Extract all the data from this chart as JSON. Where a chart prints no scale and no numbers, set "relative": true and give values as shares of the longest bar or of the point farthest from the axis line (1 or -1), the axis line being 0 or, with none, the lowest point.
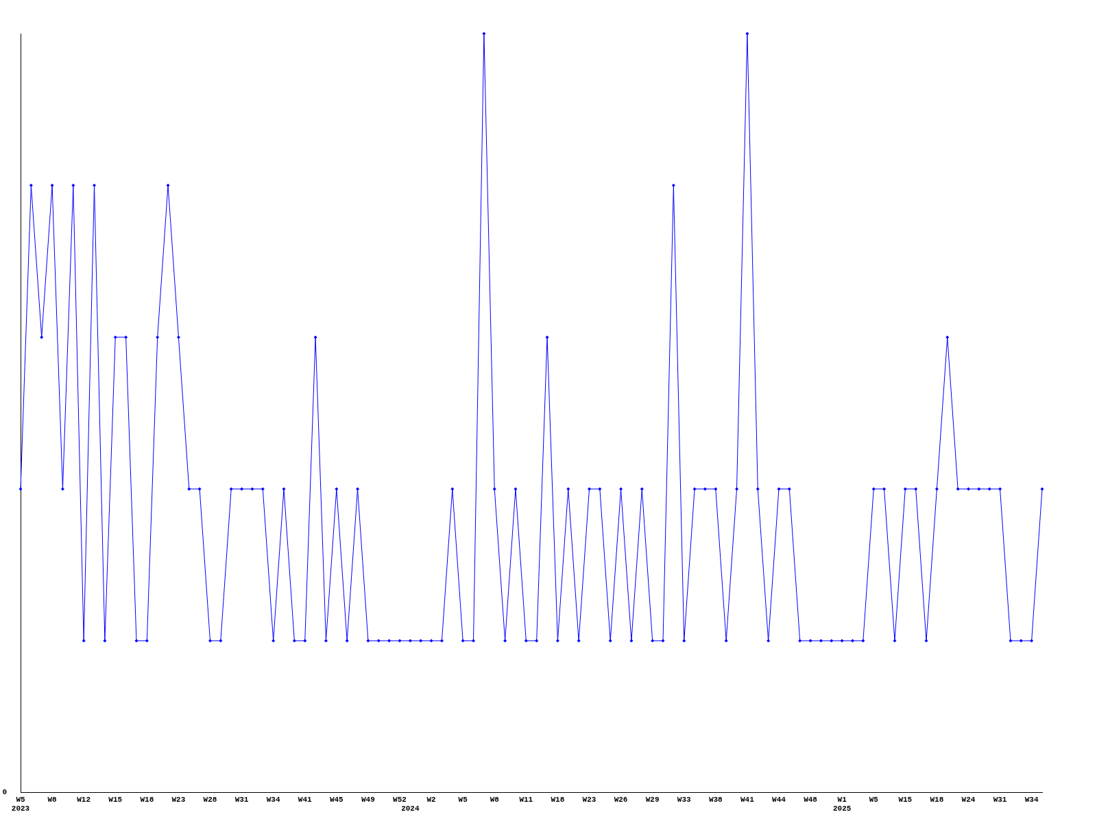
{
  "chart_data": {
    "type": "line",
    "relative": true,
    "color": "#0000ff",
    "marker": "diamond",
    "grid": false,
    "legend": false,
    "annotations": [
      "0"
    ],
    "categories": [
      "W5\n2023",
      null,
      null,
      "W8",
      null,
      null,
      "W12",
      null,
      null,
      "W15",
      null,
      null,
      "W18",
      null,
      null,
      "W23",
      null,
      null,
      "W28",
      null,
      null,
      "W31",
      null,
      null,
      "W34",
      null,
      null,
      "W41",
      null,
      null,
      "W45",
      null,
      null,
      "W49",
      null,
      null,
      "W52",
      "\n2024",
      null,
      "W2",
      null,
      null,
      "W5",
      null,
      null,
      "W8",
      null,
      null,
      "W11",
      null,
      null,
      "W18",
      null,
      null,
      "W23",
      null,
      null,
      "W26",
      null,
      null,
      "W29",
      null,
      null,
      "W33",
      null,
      null,
      "W38",
      null,
      null,
      "W41",
      null,
      null,
      "W44",
      null,
      null,
      "W48",
      null,
      null,
      "W1\n2025",
      null,
      null,
      "W5",
      null,
      null,
      "W15",
      null,
      null,
      "W18",
      null,
      null,
      "W24",
      null,
      null,
      "W31",
      null,
      null,
      "W34",
      null
    ],
    "values": [
      0.4,
      0.8,
      0.6,
      0.8,
      0.4,
      0.8,
      0.2,
      0.8,
      0.2,
      0.6,
      0.6,
      0.2,
      0.2,
      0.6,
      0.8,
      0.6,
      0.4,
      0.4,
      0.2,
      0.2,
      0.4,
      0.4,
      0.4,
      0.4,
      0.2,
      0.4,
      0.2,
      0.2,
      0.6,
      0.2,
      0.4,
      0.2,
      0.4,
      0.2,
      0.2,
      0.2,
      0.2,
      0.2,
      0.2,
      0.2,
      0.2,
      0.4,
      0.2,
      0.2,
      1,
      0.4,
      0.2,
      0.4,
      0.2,
      0.2,
      0.6,
      0.2,
      0.4,
      0.2,
      0.4,
      0.4,
      0.2,
      0.4,
      0.2,
      0.4,
      0.2,
      0.2,
      0.8,
      0.2,
      0.4,
      0.4,
      0.4,
      0.2,
      0.4,
      1,
      0.4,
      0.2,
      0.4,
      0.4,
      0.2,
      0.2,
      0.2,
      0.2,
      0.2,
      0.2,
      0.2,
      0.4,
      0.4,
      0.2,
      0.4,
      0.4,
      0.2,
      0.4,
      0.6,
      0.4,
      0.4,
      0.4,
      0.4,
      0.4,
      0.2,
      0.2,
      0.2,
      0.4
    ]
  }
}
